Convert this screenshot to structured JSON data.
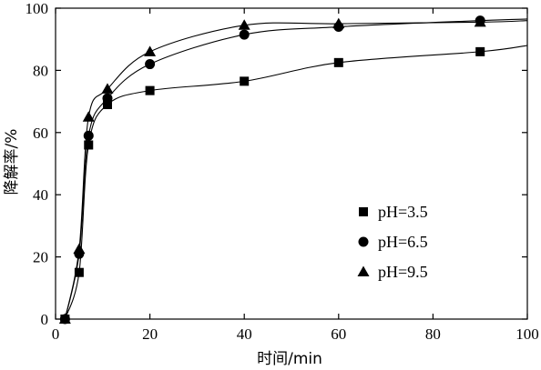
{
  "chart_data": {
    "type": "line",
    "xlabel": "时间/min",
    "ylabel": "降解率/%",
    "xlim": [
      0,
      100
    ],
    "ylim": [
      0,
      100
    ],
    "xticks": [
      0,
      20,
      40,
      60,
      80,
      100
    ],
    "yticks": [
      0,
      20,
      40,
      60,
      80,
      100
    ],
    "legend_position": "bottom-right",
    "grid": false,
    "series": [
      {
        "name": "pH=3.5",
        "marker": "square",
        "x": [
          2,
          5,
          7,
          11,
          20,
          40,
          60,
          90
        ],
        "y": [
          0,
          15,
          56,
          69,
          73.5,
          76.5,
          82.5,
          86
        ]
      },
      {
        "name": "pH=6.5",
        "marker": "circle",
        "x": [
          2,
          5,
          7,
          11,
          20,
          40,
          60,
          90
        ],
        "y": [
          0,
          21,
          59,
          71,
          82,
          91.5,
          94,
          96
        ]
      },
      {
        "name": "pH=9.5",
        "marker": "triangle",
        "x": [
          2,
          5,
          7,
          11,
          20,
          40,
          60,
          90
        ],
        "y": [
          0,
          22.5,
          65,
          74,
          86,
          94.5,
          95,
          95.5
        ]
      }
    ],
    "line_extension": {
      "pH=3.5": [
        100,
        88
      ],
      "pH=6.5": [
        100,
        96.5
      ],
      "pH=9.5": [
        100,
        96
      ]
    }
  }
}
